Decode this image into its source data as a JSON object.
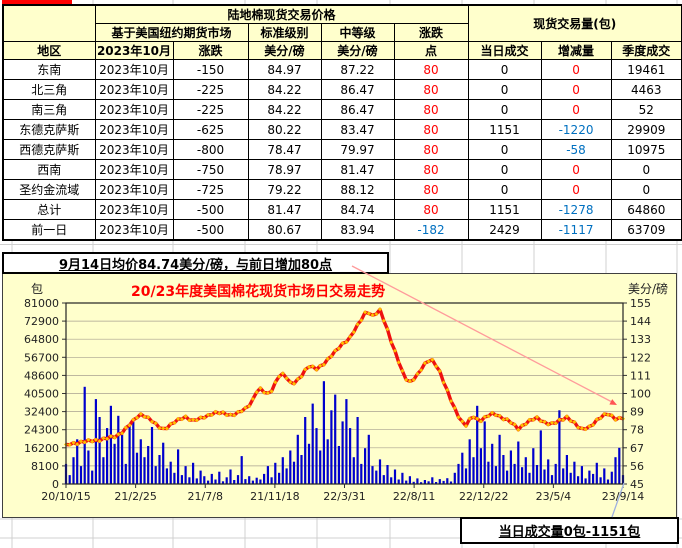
{
  "table": {
    "title": "陆地棉现货交易价格",
    "volume_title": "现货交易量(包)",
    "futures_header": "基于美国纽约期货市场",
    "standard_grade": "标准级别",
    "middle_grade": "中等级",
    "change_header": "涨跌",
    "point_header": "点",
    "region_header": "地区",
    "month_header": "2023年10月",
    "change_col": "涨跌",
    "cents_per_pound": "美分/磅",
    "daily_volume": "当日成交",
    "volume_change": "增减量",
    "quarter_volume": "季度成交",
    "rows": [
      {
        "region": "东南",
        "month": "2023年10月",
        "change": "-150",
        "standard": "84.97",
        "middle": "87.22",
        "points": "80",
        "points_color": "red",
        "daily": "0",
        "delta": "0",
        "delta_color": "red",
        "quarter": "19461"
      },
      {
        "region": "北三角",
        "month": "2023年10月",
        "change": "-225",
        "standard": "84.22",
        "middle": "86.47",
        "points": "80",
        "points_color": "red",
        "daily": "0",
        "delta": "0",
        "delta_color": "red",
        "quarter": "4463"
      },
      {
        "region": "南三角",
        "month": "2023年10月",
        "change": "-225",
        "standard": "84.22",
        "middle": "86.47",
        "points": "80",
        "points_color": "red",
        "daily": "0",
        "delta": "0",
        "delta_color": "red",
        "quarter": "52"
      },
      {
        "region": "东德克萨斯",
        "month": "2023年10月",
        "change": "-625",
        "standard": "80.22",
        "middle": "83.47",
        "points": "80",
        "points_color": "red",
        "daily": "1151",
        "delta": "-1220",
        "delta_color": "blue",
        "quarter": "29909"
      },
      {
        "region": "西德克萨斯",
        "month": "2023年10月",
        "change": "-800",
        "standard": "78.47",
        "middle": "79.97",
        "points": "80",
        "points_color": "red",
        "daily": "0",
        "delta": "-58",
        "delta_color": "blue",
        "quarter": "10975"
      },
      {
        "region": "西南",
        "month": "2023年10月",
        "change": "-750",
        "standard": "78.97",
        "middle": "81.47",
        "points": "80",
        "points_color": "red",
        "daily": "0",
        "delta": "0",
        "delta_color": "red",
        "quarter": "0"
      },
      {
        "region": "圣约金流域",
        "month": "2023年10月",
        "change": "-725",
        "standard": "79.22",
        "middle": "88.12",
        "points": "80",
        "points_color": "red",
        "daily": "0",
        "delta": "0",
        "delta_color": "red",
        "quarter": "0"
      },
      {
        "region": "总计",
        "month": "2023年10月",
        "change": "-500",
        "standard": "81.47",
        "middle": "84.74",
        "points": "80",
        "points_color": "red",
        "daily": "1151",
        "delta": "-1278",
        "delta_color": "blue",
        "quarter": "64860"
      },
      {
        "region": "前一日",
        "month": "2023年10月",
        "change": "-500",
        "standard": "80.67",
        "middle": "83.94",
        "points": "-182",
        "points_color": "blue",
        "daily": "2429",
        "delta": "-1117",
        "delta_color": "blue",
        "quarter": "63709"
      }
    ]
  },
  "notice": "9月14日均价84.74美分/磅，与前日增加80点",
  "footer_note": "当日成交量0包-1151包",
  "colors": {
    "header_fill": "#ffffcc",
    "chart_fill": "#ffffcc",
    "positive_red": "#ff0000",
    "negative_blue": "#0070c0",
    "bar_blue": "#0000cc",
    "price_line_red": "#ee1111",
    "marker_yellow": "#ffc000",
    "trend_arrow_pink": "#ff9b9b",
    "callout_line_blue": "#9fb1e1"
  },
  "chart_data": {
    "type": "bar",
    "title": "20/23年度美国棉花现货市场日交易走势",
    "left_axis_label": "包",
    "right_axis_label": "美分/磅",
    "x_ticks": [
      "20/10/15",
      "21/2/25",
      "21/7/8",
      "21/11/18",
      "22/3/31",
      "22/8/11",
      "22/12/22",
      "23/5/4",
      "23/9/14"
    ],
    "left_ticks": [
      0,
      8100,
      16200,
      24300,
      32400,
      40500,
      48600,
      56700,
      64800,
      72900,
      81000
    ],
    "right_ticks": [
      45,
      56,
      67,
      78,
      89,
      100,
      111,
      122,
      133,
      144,
      155
    ],
    "left_range": [
      0,
      81000
    ],
    "right_range": [
      45,
      155
    ],
    "grid": true,
    "legend": "none",
    "series": [
      {
        "name": "当日成交量(包)",
        "type": "bar",
        "axis": "left",
        "values": [
          9000,
          4000,
          12000,
          20000,
          8000,
          43500,
          15000,
          6000,
          38000,
          30000,
          12000,
          25000,
          35000,
          18000,
          30500,
          22000,
          9000,
          26000,
          28000,
          14000,
          20000,
          12000,
          17000,
          25500,
          8000,
          13000,
          18500,
          7000,
          10000,
          5000,
          15500,
          4000,
          8000,
          3000,
          9500,
          2500,
          6000,
          3500,
          1500,
          4500,
          2000,
          5500,
          1200,
          3000,
          6500,
          1800,
          4000,
          12500,
          2200,
          3500,
          1500,
          2800,
          2000,
          4500,
          8000,
          3000,
          9500,
          5000,
          12000,
          7000,
          15000,
          10000,
          22000,
          13000,
          30000,
          18000,
          36000,
          25000,
          15000,
          46000,
          20000,
          33000,
          40000,
          17000,
          28000,
          38000,
          25000,
          12000,
          30000,
          9000,
          16000,
          22000,
          8000,
          6000,
          11000,
          4000,
          8500,
          3000,
          6500,
          2000,
          5000,
          1500,
          3500,
          1000,
          2500,
          800,
          1800,
          1200,
          3000,
          900,
          2200,
          1400,
          2600,
          1100,
          5000,
          9000,
          14000,
          7000,
          20000,
          12000,
          35000,
          16000,
          28000,
          10000,
          18000,
          8000,
          22000,
          13000,
          6000,
          15000,
          9000,
          19000,
          7500,
          12000,
          5000,
          16000,
          8500,
          24000,
          6500,
          11000,
          4000,
          9000,
          33000,
          7000,
          13000,
          5000,
          10000,
          3500,
          8000,
          2500,
          6000,
          4500,
          9500,
          3000,
          7000,
          2000,
          5500,
          12000,
          16200,
          4000
        ]
      },
      {
        "name": "现货均价(美分/磅)",
        "type": "line",
        "axis": "right",
        "keypoints": [
          [
            0.0,
            69
          ],
          [
            0.015,
            70
          ],
          [
            0.03,
            70.5
          ],
          [
            0.05,
            71.5
          ],
          [
            0.07,
            72.5
          ],
          [
            0.09,
            74
          ],
          [
            0.105,
            78
          ],
          [
            0.12,
            83
          ],
          [
            0.132,
            87.5
          ],
          [
            0.14,
            87
          ],
          [
            0.15,
            84.5
          ],
          [
            0.165,
            80
          ],
          [
            0.175,
            78.5
          ],
          [
            0.19,
            81.5
          ],
          [
            0.205,
            84.5
          ],
          [
            0.215,
            86
          ],
          [
            0.228,
            83.5
          ],
          [
            0.24,
            84.5
          ],
          [
            0.25,
            86
          ],
          [
            0.265,
            88.5
          ],
          [
            0.28,
            88
          ],
          [
            0.295,
            87
          ],
          [
            0.31,
            88.5
          ],
          [
            0.325,
            91
          ],
          [
            0.335,
            96
          ],
          [
            0.345,
            104
          ],
          [
            0.355,
            101
          ],
          [
            0.365,
            99
          ],
          [
            0.375,
            106
          ],
          [
            0.385,
            113
          ],
          [
            0.395,
            110
          ],
          [
            0.405,
            105
          ],
          [
            0.42,
            110
          ],
          [
            0.435,
            116.5
          ],
          [
            0.45,
            115
          ],
          [
            0.465,
            119
          ],
          [
            0.48,
            124
          ],
          [
            0.495,
            130
          ],
          [
            0.51,
            134
          ],
          [
            0.525,
            142
          ],
          [
            0.54,
            151
          ],
          [
            0.552,
            146.5
          ],
          [
            0.563,
            151
          ],
          [
            0.575,
            141
          ],
          [
            0.59,
            126
          ],
          [
            0.605,
            112
          ],
          [
            0.615,
            106.5
          ],
          [
            0.63,
            111
          ],
          [
            0.645,
            118
          ],
          [
            0.655,
            121.5
          ],
          [
            0.668,
            116
          ],
          [
            0.68,
            105
          ],
          [
            0.695,
            93
          ],
          [
            0.71,
            83
          ],
          [
            0.718,
            80.5
          ],
          [
            0.73,
            86.5
          ],
          [
            0.742,
            83.5
          ],
          [
            0.755,
            86
          ],
          [
            0.768,
            88
          ],
          [
            0.78,
            86
          ],
          [
            0.795,
            83.5
          ],
          [
            0.812,
            78.5
          ],
          [
            0.828,
            83
          ],
          [
            0.845,
            85
          ],
          [
            0.86,
            82.5
          ],
          [
            0.875,
            81.5
          ],
          [
            0.89,
            84
          ],
          [
            0.9,
            86
          ],
          [
            0.912,
            82.5
          ],
          [
            0.924,
            77.8
          ],
          [
            0.938,
            79.5
          ],
          [
            0.952,
            83.5
          ],
          [
            0.965,
            86.5
          ],
          [
            0.975,
            88
          ],
          [
            0.985,
            85
          ],
          [
            1.0,
            84.7
          ]
        ]
      }
    ],
    "annotations": [
      {
        "type": "arrow",
        "label": "下行趋势箭头",
        "to_value_right_axis": 89
      },
      {
        "type": "callout-line",
        "links": "last bar to footer note"
      }
    ]
  }
}
